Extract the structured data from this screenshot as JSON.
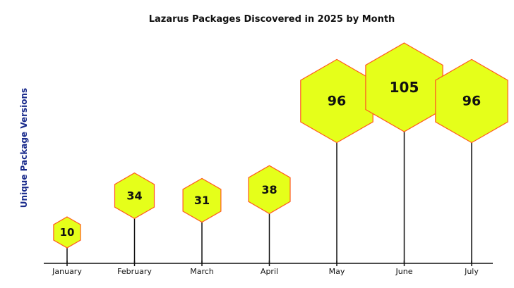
{
  "chart_data": {
    "type": "bar",
    "title": "Lazarus Packages Discovered in 2025 by Month",
    "xlabel": "",
    "ylabel": "Unique Package Versions",
    "categories": [
      "January",
      "February",
      "March",
      "April",
      "May",
      "June",
      "July"
    ],
    "values": [
      10,
      34,
      31,
      38,
      96,
      105,
      96
    ],
    "ylim": [
      0,
      120
    ],
    "grid": false,
    "legend": "none",
    "marker": "hexagon",
    "colors": {
      "fill": "#e5ff1a",
      "stroke": "#ff5a1f",
      "stem": "#111111",
      "axis": "#111111",
      "ylabel": "#1a2b8c"
    }
  }
}
